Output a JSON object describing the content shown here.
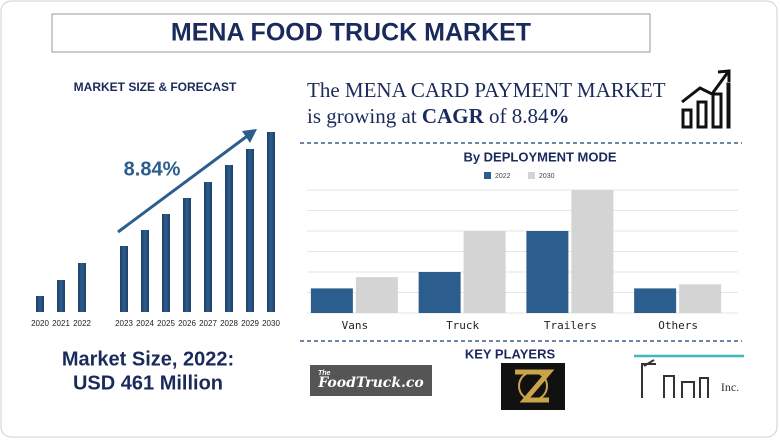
{
  "header": {
    "title": "MENA FOOD TRUCK MARKET"
  },
  "headline": {
    "line1": "The MENA CARD PAYMENT MARKET",
    "line2_pre": "is growing at",
    "line2_cagr": "CAGR",
    "line2_of": "of 8.84",
    "line2_pct": "%"
  },
  "market_size": {
    "line1": "Market Size, 2022:",
    "line2": "USD 461 Million"
  },
  "key_players": {
    "title": "KEY PLAYERS",
    "logo1_small": "The",
    "logo1_main": "FoodTruck.co",
    "logo3": "Inc."
  },
  "chart_data": [
    {
      "type": "bar",
      "title": "MARKET SIZE & FORECAST",
      "annotation": "8.84%",
      "color": "#2c5d8f",
      "categories": [
        "2020",
        "2021",
        "2022",
        "2023",
        "2024",
        "2025",
        "2026",
        "2027",
        "2028",
        "2029",
        "2030"
      ],
      "values": [
        16,
        32,
        49,
        66,
        82,
        98,
        114,
        130,
        147,
        163,
        180
      ]
    },
    {
      "type": "grouped-bar",
      "title": "By DEPLOYMENT MODE",
      "ylim": [
        0,
        6
      ],
      "grid": true,
      "categories": [
        "Vans",
        "Truck",
        "Trailers",
        "Others"
      ],
      "series": [
        {
          "name": "2022",
          "color": "#2c5d8f",
          "values": [
            1.2,
            2,
            4,
            1.2
          ]
        },
        {
          "name": "2030",
          "color": "#d4d4d4",
          "values": [
            1.75,
            4,
            6,
            1.4
          ]
        }
      ]
    }
  ]
}
